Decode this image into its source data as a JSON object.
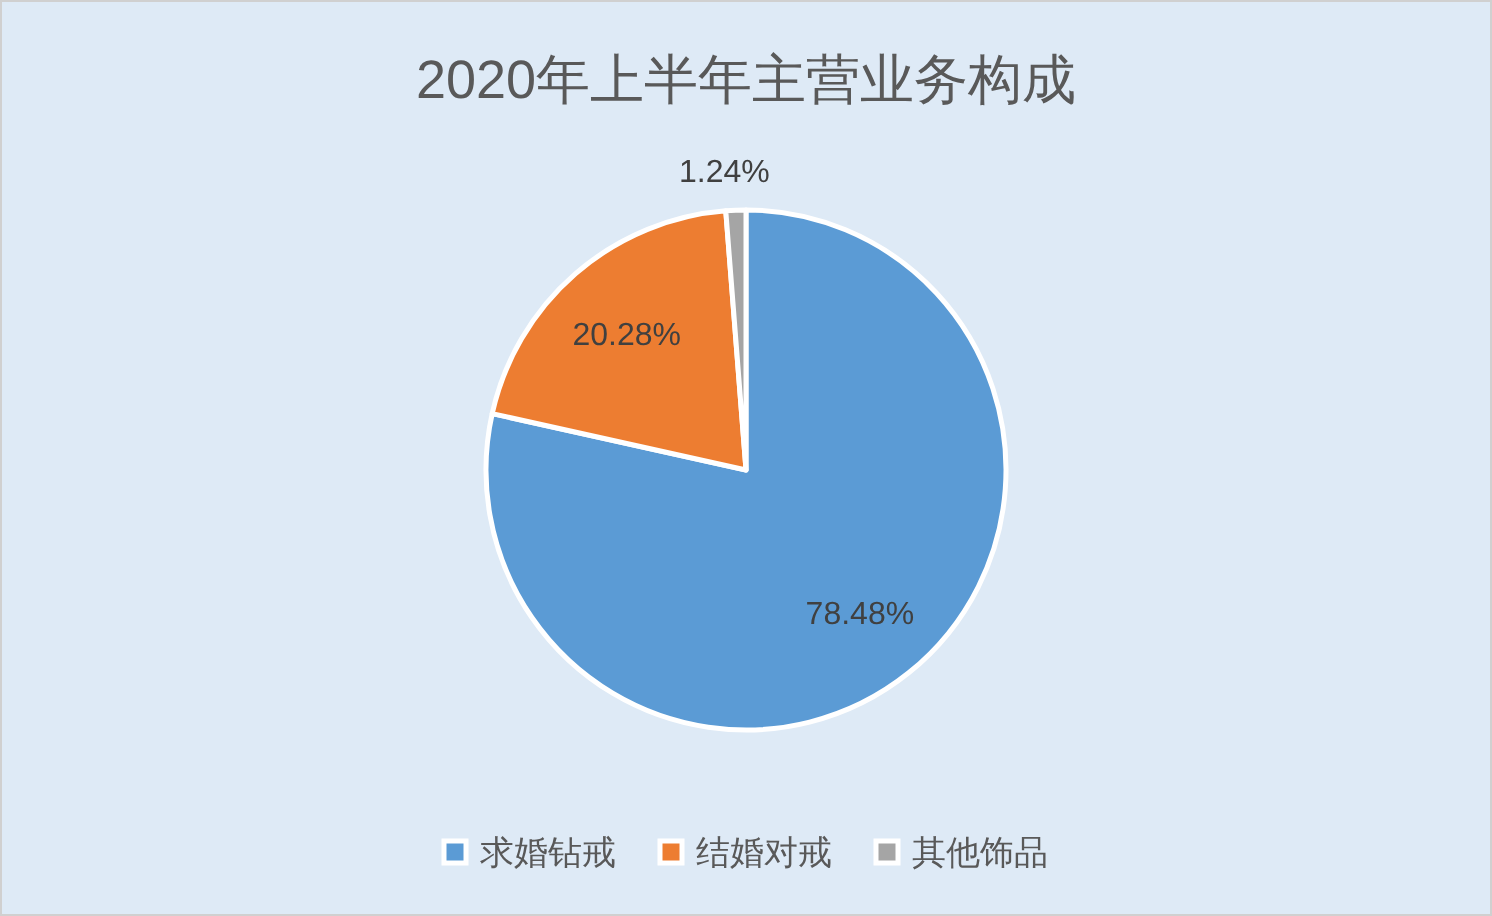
{
  "chart_data": {
    "type": "pie",
    "title": "2020年上半年主营业务构成",
    "categories": [
      "求婚钻戒",
      "结婚对戒",
      "其他饰品"
    ],
    "values": [
      78.48,
      20.28,
      1.24
    ],
    "colors": [
      "#5b9bd5",
      "#ed7d31",
      "#a5a5a5"
    ],
    "value_labels": [
      "78.48%",
      "20.28%",
      "1.24%"
    ],
    "legend": "bottom"
  }
}
